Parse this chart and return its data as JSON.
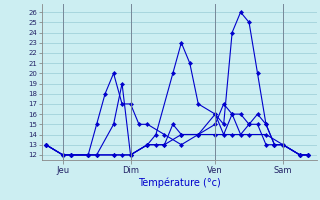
{
  "title": "Température (°c)",
  "bg_color": "#cceef2",
  "line_color": "#0000cc",
  "grid_color": "#99ccd6",
  "yticks": [
    12,
    13,
    14,
    15,
    16,
    17,
    18,
    19,
    20,
    21,
    22,
    23,
    24,
    25,
    26
  ],
  "ylim": [
    11.5,
    26.8
  ],
  "xlim": [
    -0.5,
    32
  ],
  "day_labels": [
    "Jeu",
    "Dim",
    "Ven",
    "Sam"
  ],
  "day_positions": [
    2,
    10,
    20,
    28
  ],
  "series1_x": [
    0,
    2,
    3,
    5,
    6,
    8,
    9,
    10,
    12,
    13,
    15,
    16,
    17,
    18,
    20,
    21,
    22,
    23,
    24,
    25,
    26,
    27,
    28,
    30,
    31
  ],
  "series1_y": [
    13,
    12,
    12,
    12,
    12,
    15,
    19,
    12,
    13,
    14,
    20,
    23,
    21,
    17,
    16,
    15,
    24,
    26,
    25,
    20,
    15,
    13,
    13,
    12,
    12
  ],
  "series2_x": [
    0,
    2,
    3,
    5,
    6,
    8,
    9,
    10,
    12,
    13,
    14,
    15,
    16,
    18,
    20,
    21,
    22,
    23,
    24,
    25,
    26,
    27,
    28,
    30,
    31
  ],
  "series2_y": [
    13,
    12,
    12,
    12,
    12,
    12,
    12,
    12,
    13,
    13,
    13,
    15,
    14,
    14,
    16,
    14,
    16,
    16,
    15,
    15,
    13,
    13,
    13,
    12,
    12
  ],
  "series3_x": [
    0,
    2,
    3,
    5,
    6,
    8,
    10,
    12,
    14,
    16,
    18,
    20,
    22,
    24,
    26,
    28,
    30,
    31
  ],
  "series3_y": [
    13,
    12,
    12,
    12,
    12,
    12,
    12,
    13,
    13,
    14,
    14,
    14,
    14,
    14,
    14,
    13,
    12,
    12
  ],
  "series4_x": [
    0,
    2,
    3,
    5,
    6,
    7,
    8,
    9,
    10,
    11,
    12,
    14,
    16,
    18,
    20,
    21,
    22,
    23,
    24,
    25,
    26,
    27,
    28,
    30,
    31
  ],
  "series4_y": [
    13,
    12,
    12,
    12,
    15,
    18,
    20,
    17,
    17,
    15,
    15,
    14,
    13,
    14,
    15,
    17,
    16,
    14,
    15,
    16,
    15,
    13,
    13,
    12,
    12
  ]
}
